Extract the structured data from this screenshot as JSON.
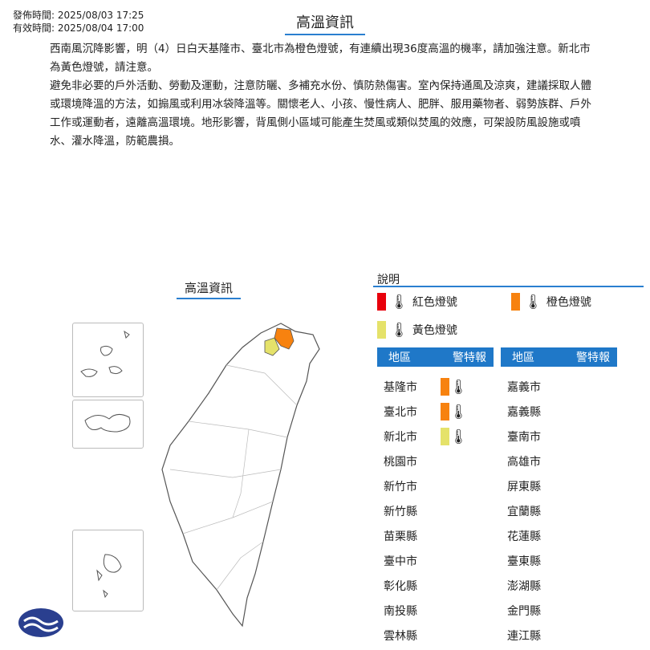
{
  "header": {
    "issued": "發佈時間: 2025/08/03 17:25",
    "valid": "有效時間: 2025/08/04 17:00",
    "title": "高溫資訊"
  },
  "description": [
    "西南風沉降影響，明（4）日白天基隆市、臺北市為橙色燈號，有連續出現36度高溫的機率，請加強注意。新北市為黃色燈號，請注意。",
    "避免非必要的戶外活動、勞動及運動，注意防曬、多補充水份、慎防熱傷害。室內保持通風及涼爽，建議採取人體或環境降溫的方法，如搧風或利用冰袋降溫等。關懷老人、小孩、慢性病人、肥胖、服用藥物者、弱勢族群、戶外工作或運動者，遠離高溫環境。地形影響，背風側小區域可能產生焚風或類似焚風的效應，可架設防風設施或噴水、灌水降溫，防範農損。"
  ],
  "map": {
    "title": "高溫資訊"
  },
  "legend": {
    "title": "說明",
    "items": [
      {
        "label": "紅色燈號",
        "color": "#e8000b"
      },
      {
        "label": "橙色燈號",
        "color": "#f7820f"
      },
      {
        "label": "黃色燈號",
        "color": "#e5e26a"
      }
    ]
  },
  "table": {
    "headers": [
      "地區",
      "警特報"
    ],
    "left": [
      {
        "name": "基隆市",
        "level": "orange"
      },
      {
        "name": "臺北市",
        "level": "orange"
      },
      {
        "name": "新北市",
        "level": "yellow"
      },
      {
        "name": "桃園市"
      },
      {
        "name": "新竹市"
      },
      {
        "name": "新竹縣"
      },
      {
        "name": "苗栗縣"
      },
      {
        "name": "臺中市"
      },
      {
        "name": "彰化縣"
      },
      {
        "name": "南投縣"
      },
      {
        "name": "雲林縣"
      }
    ],
    "right": [
      {
        "name": "嘉義市"
      },
      {
        "name": "嘉義縣"
      },
      {
        "name": "臺南市"
      },
      {
        "name": "高雄市"
      },
      {
        "name": "屏東縣"
      },
      {
        "name": "宜蘭縣"
      },
      {
        "name": "花蓮縣"
      },
      {
        "name": "臺東縣"
      },
      {
        "name": "澎湖縣"
      },
      {
        "name": "金門縣"
      },
      {
        "name": "連江縣"
      }
    ]
  },
  "colors": {
    "orange": "#f7820f",
    "yellow": "#e5e26a",
    "red": "#e8000b",
    "accent": "#1f78c8"
  }
}
